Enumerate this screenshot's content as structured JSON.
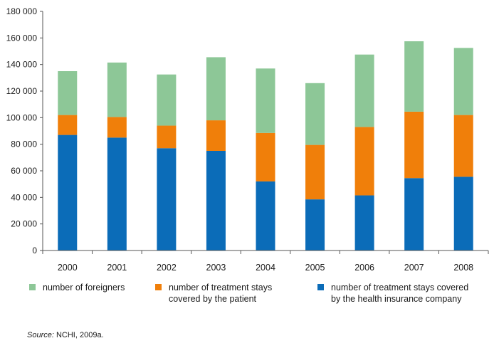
{
  "chart_data": {
    "type": "bar",
    "stacked": true,
    "categories": [
      "2000",
      "2001",
      "2002",
      "2003",
      "2004",
      "2005",
      "2006",
      "2007",
      "2008"
    ],
    "series": [
      {
        "name": "number of treatment stays covered by the health insurance company",
        "color": "#0b6cb8",
        "values": [
          87000,
          85000,
          77000,
          75000,
          52000,
          38500,
          41500,
          54500,
          55500
        ]
      },
      {
        "name": "number of treatment stays covered by the patient",
        "color": "#f07f0a",
        "values": [
          15000,
          15500,
          17000,
          23000,
          36500,
          41000,
          51500,
          50000,
          46500
        ]
      },
      {
        "name": "number of foreigners",
        "color": "#8dc797",
        "values": [
          33000,
          41000,
          38500,
          47500,
          48500,
          46500,
          54500,
          53000,
          50500
        ]
      }
    ],
    "ylim": [
      0,
      180000
    ],
    "yticks": [
      0,
      20000,
      40000,
      60000,
      80000,
      100000,
      120000,
      140000,
      160000,
      180000
    ],
    "ytick_labels": [
      "0",
      "20 000",
      "40 000",
      "60 000",
      "80 000",
      "100 000",
      "120 000",
      "140 000",
      "160 000",
      "180 000"
    ],
    "xlabel": "",
    "ylabel": "",
    "title": "",
    "grid": false,
    "legend_position": "bottom"
  },
  "legend": [
    {
      "label": "number of foreigners",
      "color": "#8dc797"
    },
    {
      "label": "number of treatment stays\ncovered by the patient",
      "color": "#f07f0a"
    },
    {
      "label": "number of treatment stays covered\nby the health insurance company",
      "color": "#0b6cb8"
    }
  ],
  "source": {
    "prefix": "Source:",
    "text": " NCHI, 2009a."
  }
}
